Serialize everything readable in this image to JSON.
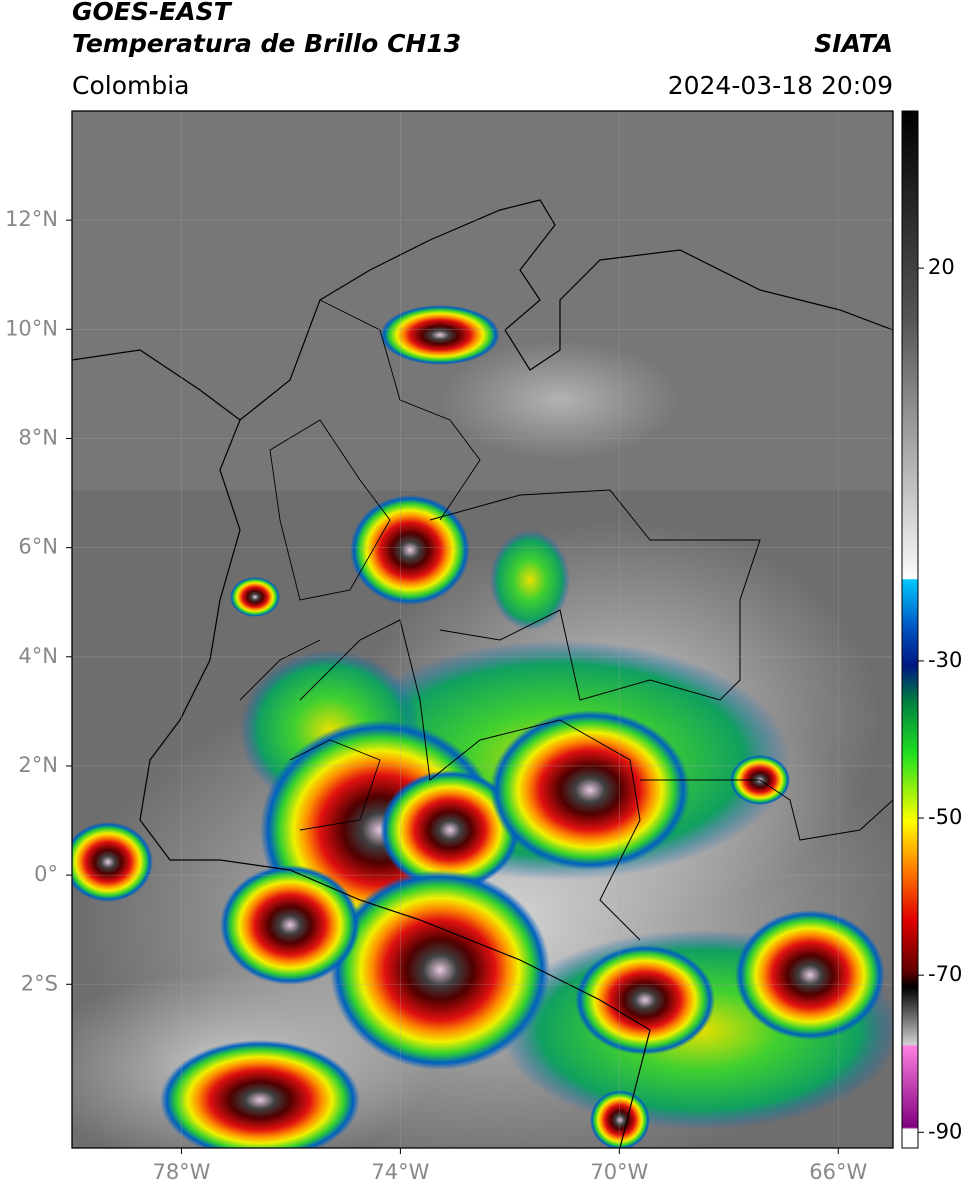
{
  "header": {
    "title": "GOES-EAST",
    "subtitle": "Temperatura de Brillo CH13",
    "region": "Colombia",
    "source": "SIATA",
    "datetime": "2024-03-18 20:09"
  },
  "map": {
    "xlim": [
      -80,
      -65
    ],
    "ylim": [
      -5,
      14
    ],
    "xticks": [
      {
        "value": -78,
        "label": "78°W"
      },
      {
        "value": -74,
        "label": "74°W"
      },
      {
        "value": -70,
        "label": "70°W"
      },
      {
        "value": -66,
        "label": "66°W"
      }
    ],
    "yticks": [
      {
        "value": 12,
        "label": "12°N"
      },
      {
        "value": 10,
        "label": "10°N"
      },
      {
        "value": 8,
        "label": "8°N"
      },
      {
        "value": 6,
        "label": "6°N"
      },
      {
        "value": 4,
        "label": "4°N"
      },
      {
        "value": 2,
        "label": "2°N"
      },
      {
        "value": 0,
        "label": "0°"
      },
      {
        "value": -2,
        "label": "2°S"
      }
    ]
  },
  "colorbar": {
    "ylim": [
      -92,
      40
    ],
    "ticks": [
      20,
      -30,
      -50,
      -70,
      -90
    ]
  }
}
